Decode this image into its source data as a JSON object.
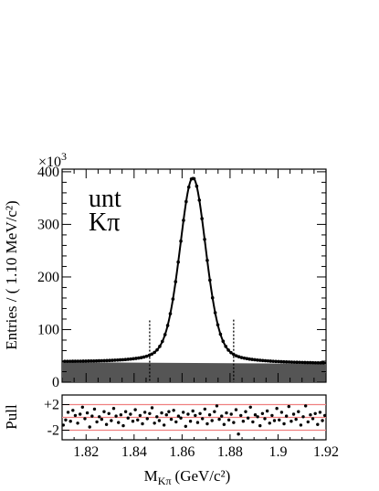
{
  "chart_data": [
    {
      "type": "line",
      "title": "",
      "annotation": {
        "line1": "unt",
        "line2": "Kπ"
      },
      "exponent_label_base": "×10",
      "exponent_label_power": "3",
      "ylabel": "Entries / ( 1.10 MeV/c²)",
      "xlabel_main": "M",
      "xlabel_sub": "Kπ",
      "xlabel_unit": "(GeV/c²)",
      "xlim": [
        1.81,
        1.92
      ],
      "ylim": [
        0,
        405
      ],
      "x_ticks": [
        "1.82",
        "1.84",
        "1.86",
        "1.88",
        "1.9",
        "1.92"
      ],
      "x_tick_values": [
        1.82,
        1.84,
        1.86,
        1.88,
        1.9,
        1.92
      ],
      "y_ticks": [
        "0",
        "100",
        "200",
        "300",
        "400"
      ],
      "y_tick_values": [
        0,
        100,
        200,
        300,
        400
      ],
      "signal_window": [
        1.8465,
        1.8815
      ],
      "background": {
        "x": [
          1.81,
          1.92
        ],
        "y": [
          38,
          35
        ]
      },
      "fit_model": {
        "mean": 1.8645,
        "amplitude": 352,
        "sigma": 0.0055,
        "tail_width": 0.0068,
        "background_left": 38,
        "background_right": 35
      },
      "grid": false,
      "legend": "none"
    },
    {
      "type": "scatter",
      "ylabel": "Pull",
      "y_ticks": [
        "+2",
        "-2"
      ],
      "y_tick_values": [
        2,
        -2
      ],
      "ylim": [
        -3.5,
        3.5
      ],
      "reference_lines": [
        2,
        0,
        -2
      ],
      "reference_line_color": "#f08080",
      "x": [
        1.8105,
        1.8115,
        1.8125,
        1.8135,
        1.8145,
        1.8155,
        1.8165,
        1.8175,
        1.8185,
        1.8195,
        1.8205,
        1.8215,
        1.8225,
        1.8235,
        1.8245,
        1.8255,
        1.8265,
        1.8275,
        1.8285,
        1.8295,
        1.8305,
        1.8315,
        1.8325,
        1.8335,
        1.8345,
        1.8355,
        1.8365,
        1.8375,
        1.8385,
        1.8395,
        1.8405,
        1.8415,
        1.8425,
        1.8435,
        1.8445,
        1.8455,
        1.8465,
        1.8475,
        1.8485,
        1.8495,
        1.8505,
        1.8515,
        1.8525,
        1.8535,
        1.8545,
        1.8555,
        1.8565,
        1.8575,
        1.8585,
        1.8595,
        1.8605,
        1.8615,
        1.8625,
        1.8635,
        1.8645,
        1.8655,
        1.8665,
        1.8675,
        1.8685,
        1.8695,
        1.8705,
        1.8715,
        1.8725,
        1.8735,
        1.8745,
        1.8755,
        1.8765,
        1.8775,
        1.8785,
        1.8795,
        1.8805,
        1.8815,
        1.8825,
        1.8835,
        1.8845,
        1.8855,
        1.8865,
        1.8875,
        1.8885,
        1.8895,
        1.8905,
        1.8915,
        1.8925,
        1.8935,
        1.8945,
        1.8955,
        1.8965,
        1.8975,
        1.8985,
        1.8995,
        1.9005,
        1.9015,
        1.9025,
        1.9035,
        1.9045,
        1.9055,
        1.9065,
        1.9075,
        1.9085,
        1.9095,
        1.9105,
        1.9115,
        1.9125,
        1.9135,
        1.9145,
        1.9155,
        1.9165,
        1.9175,
        1.9185,
        1.9195
      ],
      "values": [
        -1.2,
        -0.4,
        0.8,
        -0.6,
        1.1,
        0.3,
        -0.9,
        0.5,
        1.6,
        -0.2,
        0.7,
        -1.5,
        0.2,
        1.3,
        -0.7,
        0.1,
        -0.3,
        0.9,
        -1.1,
        0.6,
        -0.5,
        1.4,
        0.2,
        -0.8,
        0.4,
        -1.3,
        0.9,
        -0.1,
        0.5,
        -0.6,
        1.2,
        -0.4,
        0.3,
        -1.0,
        0.8,
        -0.2,
        0.6,
        1.5,
        -0.9,
        0.1,
        -0.5,
        0.7,
        -1.2,
        0.4,
        0.9,
        -0.3,
        1.1,
        -0.7,
        0.2,
        -0.1,
        0.8,
        -1.4,
        0.5,
        -0.6,
        1.0,
        0.3,
        -0.8,
        0.6,
        -0.2,
        1.3,
        -1.0,
        0.4,
        -0.5,
        0.9,
        1.8,
        -0.3,
        0.2,
        -1.1,
        0.7,
        -0.4,
        0.5,
        -0.8,
        1.2,
        -2.6,
        0.3,
        -0.6,
        0.9,
        -0.1,
        1.6,
        -0.7,
        0.4,
        0.1,
        -1.3,
        0.6,
        -0.2,
        1.0,
        -0.9,
        0.3,
        -0.5,
        1.4,
        -0.4,
        0.8,
        -1.0,
        0.2,
        1.7,
        -0.6,
        0.5,
        -0.3,
        0.9,
        -1.2,
        0.1,
        1.8,
        -0.7,
        0.4,
        -0.2,
        0.6,
        -1.1,
        0.8,
        -0.5,
        0.3
      ]
    }
  ]
}
